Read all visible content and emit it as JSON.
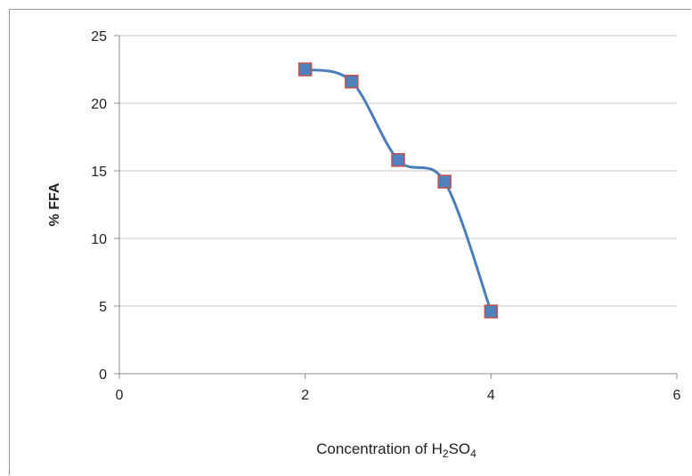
{
  "chart_data": {
    "type": "line",
    "title": "",
    "xlabel_main": "Concentration of H",
    "xlabel_sub1": "2",
    "xlabel_mid": "SO",
    "xlabel_sub2": "4",
    "ylabel": "% FFA",
    "xlim": [
      0,
      6
    ],
    "ylim": [
      0,
      25
    ],
    "xticks": [
      0,
      2,
      4,
      6
    ],
    "yticks": [
      0,
      5,
      10,
      15,
      20,
      25
    ],
    "grid": true,
    "smooth": true,
    "series": [
      {
        "x": [
          2,
          2.5,
          3,
          3.5,
          4
        ],
        "y": [
          22.5,
          21.6,
          15.8,
          14.2,
          4.6
        ]
      }
    ],
    "colors": {
      "line": "#4a7ebb",
      "marker_fill": "#4f81bd",
      "marker_edge": "#c0504d"
    }
  }
}
